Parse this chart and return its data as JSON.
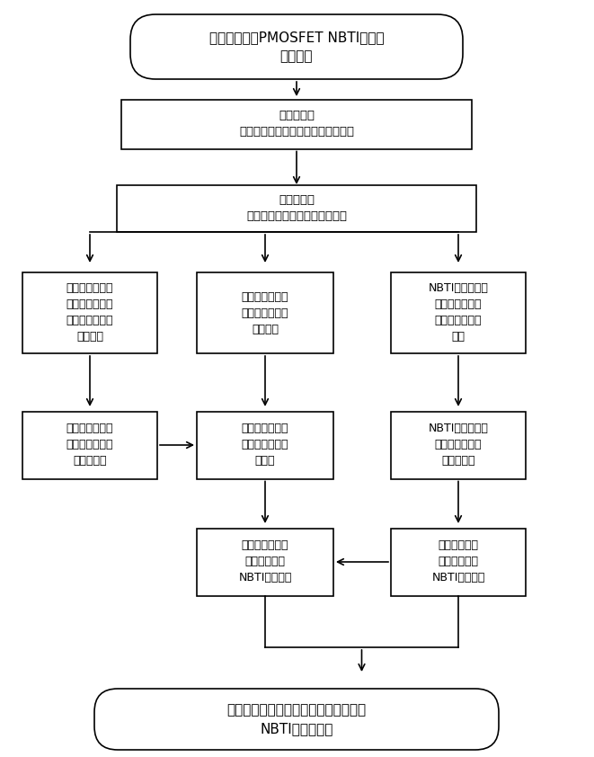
{
  "title": "总剂量辐照对PMOSFET NBTI影响的\n试验方法",
  "box1_text": "样品筛选：\n初值测试，选择阈值电压近似的样品",
  "box2_text": "样品分组：\n预辐照组、对比组、两个摸底组",
  "box_left1_text": "辐照摸底组总剂\n量辐照试验：确\n定辐照总剂量等\n试验条件",
  "box_left2_text": "辐照摸底组退火\n试验：确定退火\n过程及条件",
  "box_mid1_text": "预辐照组：开展\n确定条件下的总\n剂量辐照",
  "box_mid2_text": "预辐照组：开展\n确定条件下的退\n火试验",
  "box_mid3_text": "预辐照组：开展\n确定条件下的\nNBTI应力试验",
  "box_right1_text": "NBTI摸底组应力\n试验前：确定应\n力大小、温度等\n条件",
  "box_right2_text": "NBTI摸底组应力\n试验中：确定参\n数测量方法",
  "box_right3_text": "对比组：开展\n确定条件下的\nNBTI应力试验",
  "bottom_text": "对比参数变化结果，确定总剂量辐照对\nNBTI效应的影响",
  "bg_color": "#ffffff",
  "box_color": "#ffffff",
  "border_color": "#000000",
  "text_color": "#000000",
  "arrow_color": "#000000",
  "fig_w": 6.61,
  "fig_h": 8.42,
  "dpi": 100
}
